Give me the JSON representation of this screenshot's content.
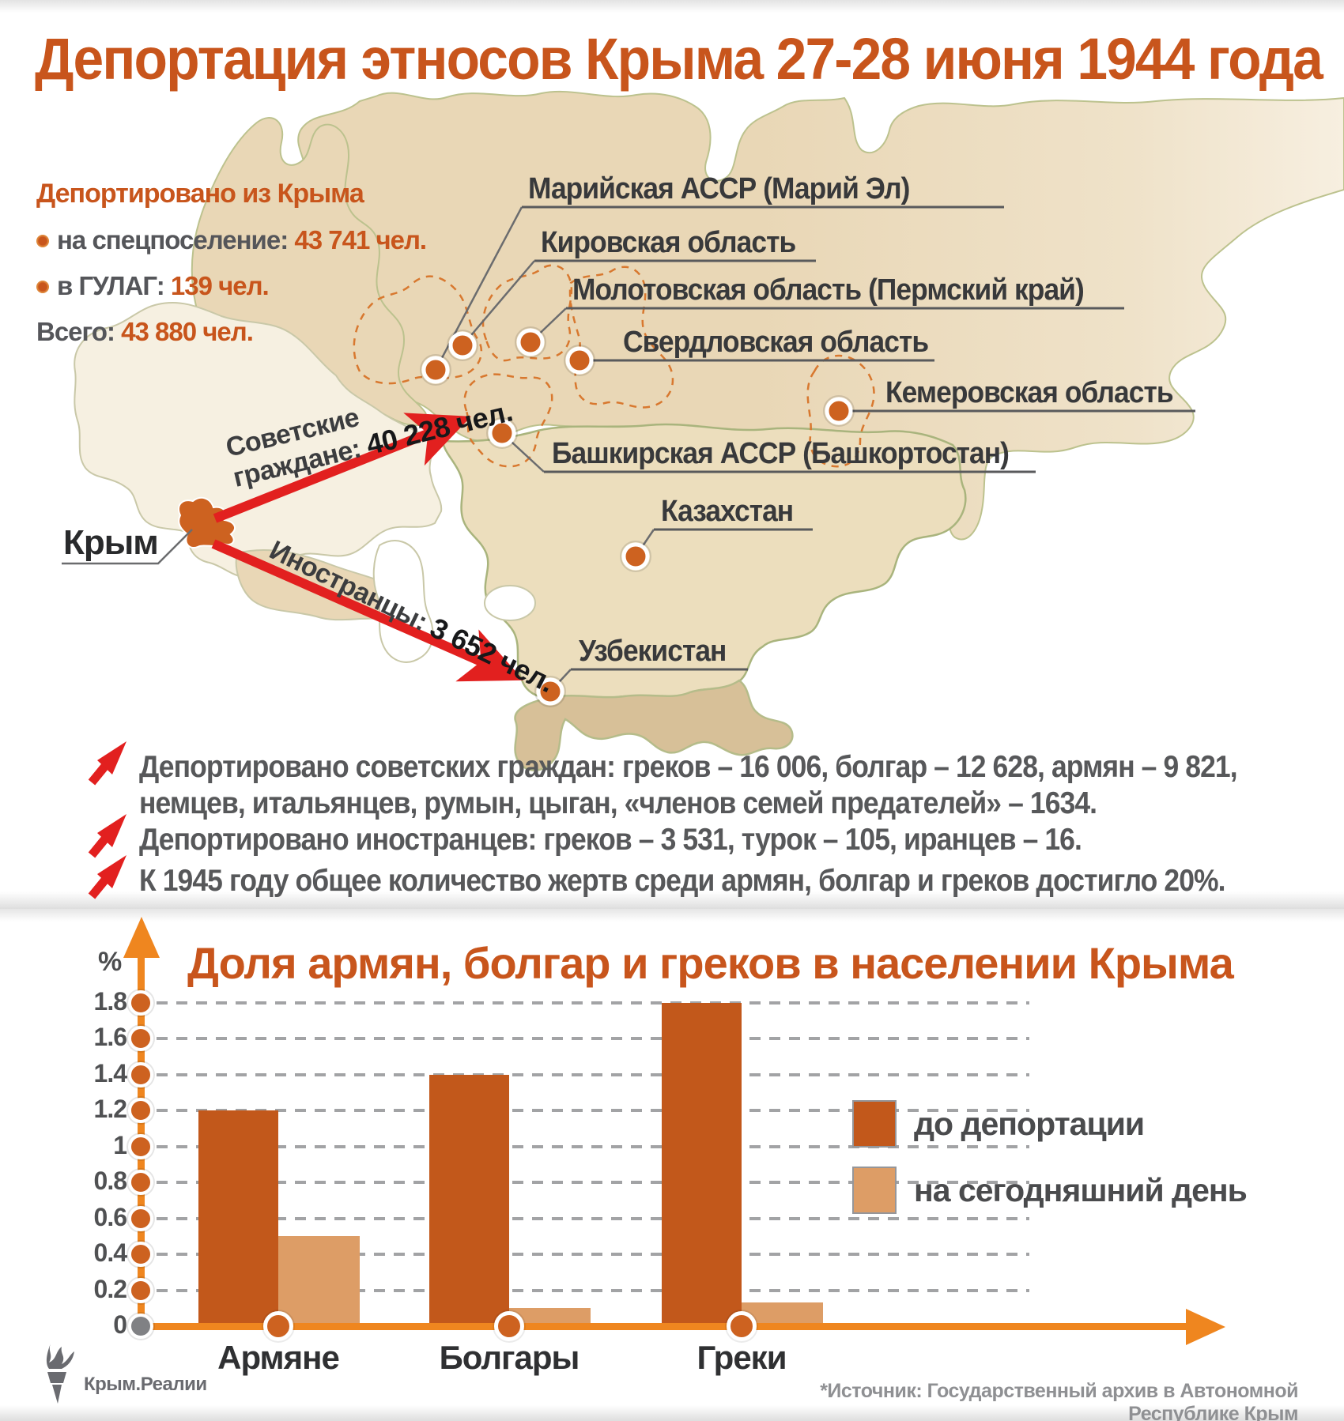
{
  "title": "Депортация этносов Крыма 27-28 июня 1944 года",
  "stats": {
    "heading": "Депортировано из Крыма",
    "items": [
      {
        "label": "на спецпоселение:",
        "value": "43 741 чел."
      },
      {
        "label": "в ГУЛАГ:",
        "value": "139 чел."
      },
      {
        "label": "Всего:",
        "value": "43 880 чел."
      }
    ]
  },
  "map": {
    "crimea_label": "Крым",
    "locations": [
      {
        "name": "Марийская АССР (Марий Эл)"
      },
      {
        "name": "Кировская область"
      },
      {
        "name": "Молотовская область (Пермский край)"
      },
      {
        "name": "Свердловская область"
      },
      {
        "name": "Кемеровская область"
      },
      {
        "name": "Башкирская АССР (Башкортостан)"
      },
      {
        "name": "Казахстан"
      },
      {
        "name": "Узбекистан"
      }
    ],
    "flows": [
      {
        "group": "Советские",
        "group2": "граждане:",
        "value": "40 228 чел."
      },
      {
        "group": "Иностранцы:",
        "value": "3 652 чел."
      }
    ]
  },
  "notes": [
    {
      "lines": [
        "Депортировано советских граждан: греков – 16 006, болгар – 12 628, армян – 9 821,",
        "немцев, итальянцев, румын, цыган, «членов семей предателей» – 1634."
      ]
    },
    {
      "lines": [
        "Депортировано иностранцев: греков – 3 531, турок – 105, иранцев – 16."
      ]
    },
    {
      "lines": [
        "К 1945 году общее количество жертв среди армян, болгар и греков достигло 20%."
      ]
    }
  ],
  "chart_data": {
    "type": "bar",
    "title": "Доля армян, болгар и греков в населении Крыма",
    "unit": "%",
    "categories": [
      "Армяне",
      "Болгары",
      "Греки"
    ],
    "series": [
      {
        "name": "до депортации",
        "color": "#c2581b",
        "values": [
          1.2,
          1.4,
          1.8
        ]
      },
      {
        "name": "на сегодняшний день",
        "color": "#dd9d66",
        "values": [
          0.5,
          0.1,
          0.13
        ]
      }
    ],
    "yticks": [
      0,
      0.2,
      0.4,
      0.6,
      0.8,
      1,
      1.2,
      1.4,
      1.6,
      1.8
    ],
    "ylim": [
      0,
      1.9
    ],
    "grid": "dashed-horizontal",
    "legend_position": "right",
    "axis_color": "#ef861f"
  },
  "footer": {
    "logo": "Крым.Реалии",
    "source": "*Источник: Государственный архив в Автономной Республике Крым"
  },
  "colors": {
    "accent_orange": "#c8551c",
    "flow_red": "#e2201f",
    "land": "#e9d7b6",
    "uzbek_land": "#d7c098",
    "dot_orange": "#cd6220",
    "text_gray": "#57585a"
  }
}
